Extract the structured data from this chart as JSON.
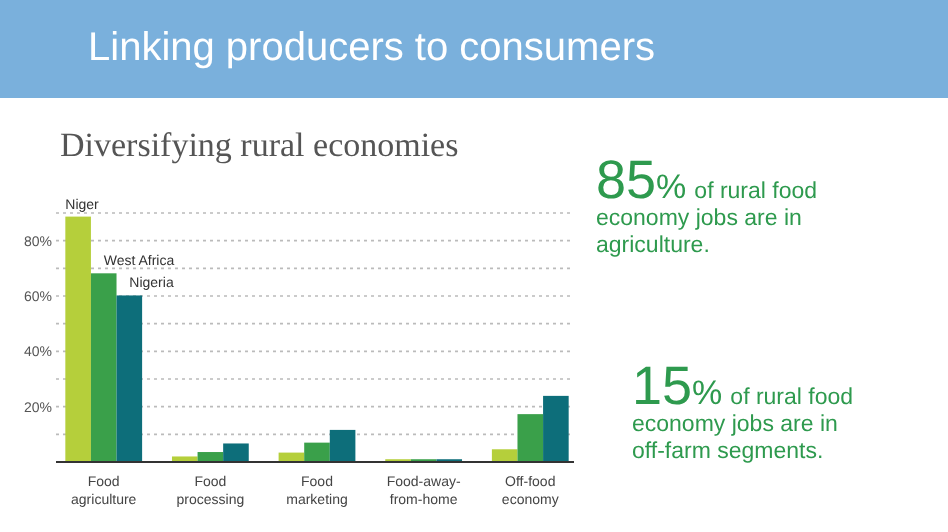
{
  "chart_data": {
    "type": "bar",
    "title": "Linking producers to consumers",
    "subtitle": "Diversifying rural economies",
    "categories": [
      "Food agriculture",
      "Food processing",
      "Food marketing",
      "Food-away-from-home",
      "Off-food economy"
    ],
    "series": [
      {
        "name": "Niger",
        "color": "#b5cf3b",
        "values": [
          88.7,
          2,
          3.4,
          1,
          4.6
        ]
      },
      {
        "name": "West Africa",
        "color": "#3aa04a",
        "values": [
          68.2,
          3.6,
          7,
          1,
          17.3
        ]
      },
      {
        "name": "Nigeria",
        "color": "#0d6e7a",
        "values": [
          60.2,
          6.7,
          11.6,
          1,
          23.9
        ]
      }
    ],
    "ylim": [
      0,
      90
    ],
    "yticks": [
      {
        "value": 10,
        "label": null
      },
      {
        "value": 20,
        "label": "20%"
      },
      {
        "value": 30,
        "label": null
      },
      {
        "value": 40,
        "label": "40%"
      },
      {
        "value": 50,
        "label": null
      },
      {
        "value": 60,
        "label": "60%"
      },
      {
        "value": 70,
        "label": null
      },
      {
        "value": 80,
        "label": "80%"
      },
      {
        "value": 90,
        "label": null
      }
    ],
    "grid": "y",
    "annotations": [
      "85% of rural food economy jobs are in agriculture.",
      "15% of rural food economy jobs are in off-farm segments."
    ]
  }
}
